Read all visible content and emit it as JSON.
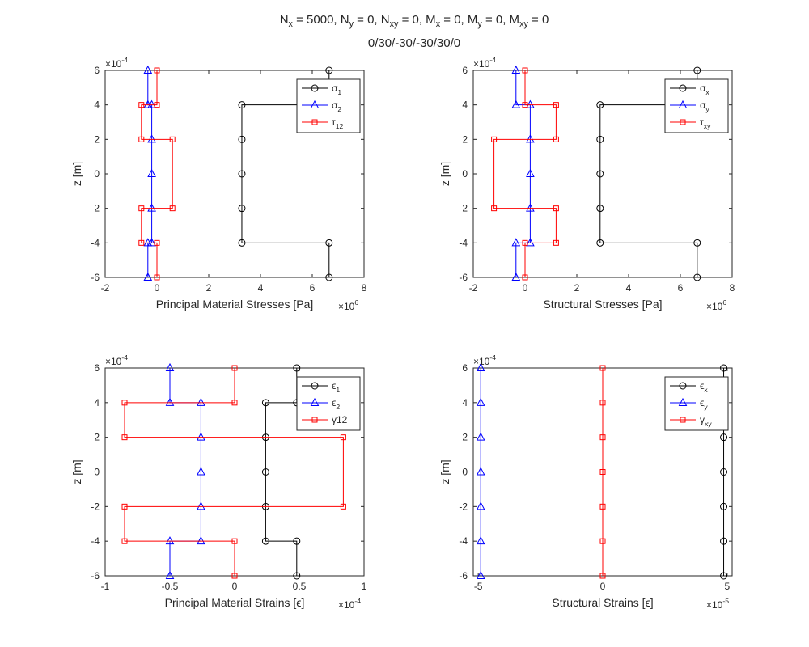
{
  "figure": {
    "title_line1": "N_x = 5000, N_y = 0, N_xy = 0, M_x = 0, M_y = 0, M_xy = 0",
    "title_line2": "0/30/-30/-30/30/0"
  },
  "chart_data": [
    {
      "type": "line",
      "xlabel": "Principal Material Stresses [Pa]",
      "ylabel": "z [m]",
      "xlim": [
        -2000000,
        8000000
      ],
      "ylim": [
        -0.0006,
        0.0006
      ],
      "xticks": [
        -2000000,
        0,
        2000000,
        4000000,
        6000000,
        8000000
      ],
      "xtick_labels": [
        "-2",
        "0",
        "2",
        "4",
        "6",
        "8"
      ],
      "x_exponent": "×10^6",
      "yticks": [
        -0.0006,
        -0.0004,
        -0.0002,
        0,
        0.0002,
        0.0004,
        0.0006
      ],
      "ytick_labels": [
        "-6",
        "-4",
        "-2",
        "0",
        "2",
        "4",
        "6"
      ],
      "y_exponent": "×10^-4",
      "legend_position": "top-right",
      "series": [
        {
          "name": "σ_1",
          "color": "#000000",
          "marker": "circle",
          "x": [
            6650000,
            6650000,
            3280000,
            3280000,
            3280000,
            3280000,
            3280000,
            6650000,
            6650000
          ],
          "y": [
            0.0006,
            0.0004,
            0.0004,
            0.0002,
            0,
            -0.0002,
            -0.0004,
            -0.0004,
            -0.0006
          ]
        },
        {
          "name": "σ_2",
          "color": "#0000ff",
          "marker": "triangle",
          "x": [
            -350000,
            -350000,
            -200000,
            -200000,
            -200000,
            -200000,
            -200000,
            -350000,
            -350000
          ],
          "y": [
            0.0006,
            0.0004,
            0.0004,
            0.0002,
            0,
            -0.0002,
            -0.0004,
            -0.0004,
            -0.0006
          ]
        },
        {
          "name": "τ_12",
          "color": "#ff0000",
          "marker": "square",
          "x": [
            0,
            0,
            -600000,
            -600000,
            600000,
            600000,
            -600000,
            -600000,
            0,
            0
          ],
          "y": [
            0.0006,
            0.0004,
            0.0004,
            0.0002,
            0.0002,
            -0.0002,
            -0.0002,
            -0.0004,
            -0.0004,
            -0.0006
          ]
        }
      ]
    },
    {
      "type": "line",
      "xlabel": "Structural Stresses [Pa]",
      "ylabel": "z [m]",
      "xlim": [
        -2000000,
        8000000
      ],
      "ylim": [
        -0.0006,
        0.0006
      ],
      "xticks": [
        -2000000,
        0,
        2000000,
        4000000,
        6000000,
        8000000
      ],
      "xtick_labels": [
        "-2",
        "0",
        "2",
        "4",
        "6",
        "8"
      ],
      "x_exponent": "×10^6",
      "yticks": [
        -0.0006,
        -0.0004,
        -0.0002,
        0,
        0.0002,
        0.0004,
        0.0006
      ],
      "ytick_labels": [
        "-6",
        "-4",
        "-2",
        "0",
        "2",
        "4",
        "6"
      ],
      "y_exponent": "×10^-4",
      "legend_position": "top-right",
      "series": [
        {
          "name": "σ_x",
          "color": "#000000",
          "marker": "circle",
          "x": [
            6650000,
            6650000,
            2900000,
            2900000,
            2900000,
            2900000,
            2900000,
            6650000,
            6650000
          ],
          "y": [
            0.0006,
            0.0004,
            0.0004,
            0.0002,
            0,
            -0.0002,
            -0.0004,
            -0.0004,
            -0.0006
          ]
        },
        {
          "name": "σ_y",
          "color": "#0000ff",
          "marker": "triangle",
          "x": [
            -350000,
            -350000,
            200000,
            200000,
            200000,
            200000,
            200000,
            -350000,
            -350000
          ],
          "y": [
            0.0006,
            0.0004,
            0.0004,
            0.0002,
            0,
            -0.0002,
            -0.0004,
            -0.0004,
            -0.0006
          ]
        },
        {
          "name": "τ_xy",
          "color": "#ff0000",
          "marker": "square",
          "x": [
            0,
            0,
            1200000,
            1200000,
            -1200000,
            -1200000,
            1200000,
            1200000,
            0,
            0
          ],
          "y": [
            0.0006,
            0.0004,
            0.0004,
            0.0002,
            0.0002,
            -0.0002,
            -0.0002,
            -0.0004,
            -0.0004,
            -0.0006
          ]
        }
      ]
    },
    {
      "type": "line",
      "xlabel": "Principal Material Strains [ϵ]",
      "ylabel": "z [m]",
      "xlim": [
        -0.0001,
        0.0001
      ],
      "ylim": [
        -0.0006,
        0.0006
      ],
      "xticks": [
        -0.0001,
        -5e-05,
        0,
        5e-05,
        0.0001
      ],
      "xtick_labels": [
        "-1",
        "-0.5",
        "0",
        "0.5",
        "1"
      ],
      "x_exponent": "×10^-4",
      "yticks": [
        -0.0006,
        -0.0004,
        -0.0002,
        0,
        0.0002,
        0.0004,
        0.0006
      ],
      "ytick_labels": [
        "-6",
        "-4",
        "-2",
        "0",
        "2",
        "4",
        "6"
      ],
      "y_exponent": "×10^-4",
      "legend_position": "top-right",
      "series": [
        {
          "name": "ϵ_1",
          "color": "#000000",
          "marker": "circle",
          "x": [
            4.8e-05,
            4.8e-05,
            2.4e-05,
            2.4e-05,
            2.4e-05,
            2.4e-05,
            2.4e-05,
            4.8e-05,
            4.8e-05
          ],
          "y": [
            0.0006,
            0.0004,
            0.0004,
            0.0002,
            0,
            -0.0002,
            -0.0004,
            -0.0004,
            -0.0006
          ]
        },
        {
          "name": "ϵ_2",
          "color": "#0000ff",
          "marker": "triangle",
          "x": [
            -5e-05,
            -5e-05,
            -2.6e-05,
            -2.6e-05,
            -2.6e-05,
            -2.6e-05,
            -2.6e-05,
            -5e-05,
            -5e-05
          ],
          "y": [
            0.0006,
            0.0004,
            0.0004,
            0.0002,
            0,
            -0.0002,
            -0.0004,
            -0.0004,
            -0.0006
          ]
        },
        {
          "name": "γ12",
          "color": "#ff0000",
          "marker": "square",
          "x": [
            0,
            0,
            -8.5e-05,
            -8.5e-05,
            8.4e-05,
            8.4e-05,
            -8.5e-05,
            -8.5e-05,
            0,
            0
          ],
          "y": [
            0.0006,
            0.0004,
            0.0004,
            0.0002,
            0.0002,
            -0.0002,
            -0.0002,
            -0.0004,
            -0.0004,
            -0.0006
          ]
        }
      ]
    },
    {
      "type": "line",
      "xlabel": "Structural Strains [ϵ]",
      "ylabel": "z [m]",
      "xlim": [
        -5.2e-05,
        5.2e-05
      ],
      "ylim": [
        -0.0006,
        0.0006
      ],
      "xticks": [
        -5e-05,
        0,
        5e-05
      ],
      "xtick_labels": [
        "-5",
        "0",
        "5"
      ],
      "x_exponent": "×10^-5",
      "yticks": [
        -0.0006,
        -0.0004,
        -0.0002,
        0,
        0.0002,
        0.0004,
        0.0006
      ],
      "ytick_labels": [
        "-6",
        "-4",
        "-2",
        "0",
        "2",
        "4",
        "6"
      ],
      "y_exponent": "×10^-4",
      "legend_position": "top-right",
      "series": [
        {
          "name": "ϵ_x",
          "color": "#000000",
          "marker": "circle",
          "x": [
            4.86e-05,
            4.86e-05,
            4.86e-05,
            4.86e-05,
            4.86e-05,
            4.86e-05,
            4.86e-05
          ],
          "y": [
            0.0006,
            0.0004,
            0.0002,
            0,
            -0.0002,
            -0.0004,
            -0.0006
          ]
        },
        {
          "name": "ϵ_y",
          "color": "#0000ff",
          "marker": "triangle",
          "x": [
            -4.9e-05,
            -4.9e-05,
            -4.9e-05,
            -4.9e-05,
            -4.9e-05,
            -4.9e-05,
            -4.9e-05
          ],
          "y": [
            0.0006,
            0.0004,
            0.0002,
            0,
            -0.0002,
            -0.0004,
            -0.0006
          ]
        },
        {
          "name": "γ_xy",
          "color": "#ff0000",
          "marker": "square",
          "x": [
            0,
            0,
            0,
            0,
            0,
            0,
            0
          ],
          "y": [
            0.0006,
            0.0004,
            0.0002,
            0,
            -0.0002,
            -0.0004,
            -0.0006
          ]
        }
      ]
    }
  ]
}
